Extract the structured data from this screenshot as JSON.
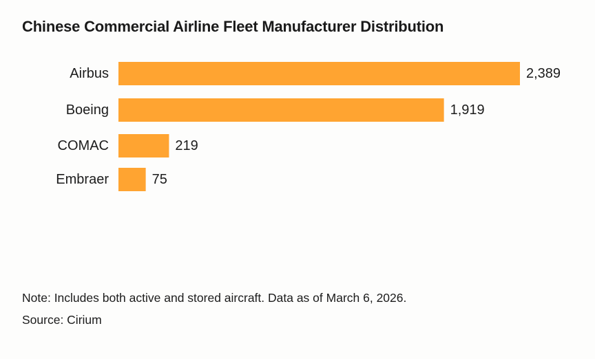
{
  "chart_data": {
    "type": "bar",
    "orientation": "horizontal",
    "title": "Chinese Commercial Airline Fleet Manufacturer Distribution",
    "categories": [
      "Airbus",
      "Boeing",
      "COMAC",
      "Embraer"
    ],
    "values": [
      2389,
      1919,
      219,
      75
    ],
    "value_labels": [
      "2,389",
      "1,919",
      "219",
      "75"
    ],
    "xlabel": "",
    "ylabel": "",
    "grid": false,
    "legend": "none",
    "bar_color": "#ffa431"
  },
  "footer": {
    "note": "Note: Includes both active and stored aircraft. Data as of March 6, 2026.",
    "source": "Source: Cirium"
  }
}
